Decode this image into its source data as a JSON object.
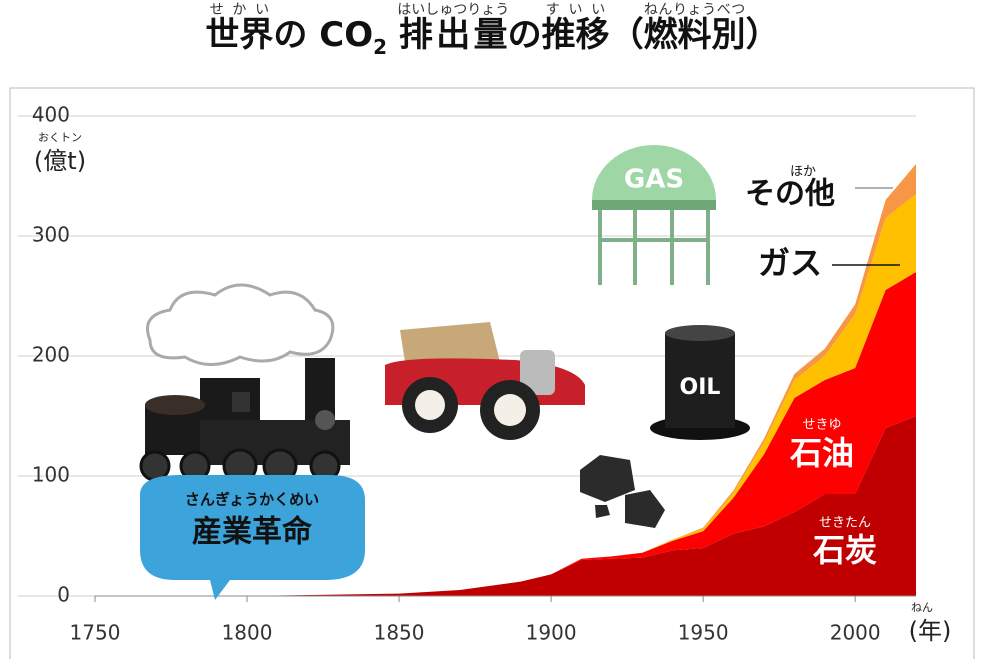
{
  "title": {
    "parts": [
      {
        "text": "世界",
        "ruby": "せかい"
      },
      {
        "text": "の "
      },
      {
        "text": "CO"
      },
      {
        "text": "2"
      },
      {
        "text": "排出量",
        "ruby": "はいしゅつりょう"
      },
      {
        "text": "の"
      },
      {
        "text": "推移",
        "ruby": "すいい"
      },
      {
        "text": "（"
      },
      {
        "text": "燃料別",
        "ruby": "ねんりょうべつ"
      },
      {
        "text": "）"
      }
    ]
  },
  "illustrations": {
    "bubble": {
      "text": "産業革命",
      "ruby": "さんぎょうかくめい"
    },
    "tank": "GAS",
    "barrel": "OIL"
  },
  "chart_data": {
    "type": "stacked_area",
    "y_label": {
      "text": "(億t)",
      "ruby": "おくトン"
    },
    "x_label": {
      "text": "(年)",
      "ruby": "ねん"
    },
    "x": [
      1750,
      1800,
      1850,
      1870,
      1890,
      1900,
      1910,
      1920,
      1930,
      1940,
      1950,
      1960,
      1970,
      1980,
      1990,
      2000,
      2010,
      2020
    ],
    "series": [
      {
        "name": "石炭",
        "ruby": "せきたん",
        "color": "#c00000",
        "values": [
          0,
          0,
          2,
          5,
          12,
          18,
          30,
          31,
          32,
          38,
          40,
          52,
          58,
          70,
          85,
          85,
          140,
          150
        ]
      },
      {
        "name": "石油",
        "ruby": "せきゆ",
        "color": "#ff0000",
        "values": [
          0,
          0,
          0,
          0,
          0,
          0,
          1,
          2,
          4,
          8,
          14,
          30,
          60,
          95,
          95,
          105,
          115,
          120
        ]
      },
      {
        "name": "ガス",
        "color": "#ffc000",
        "values": [
          0,
          0,
          0,
          0,
          0,
          0,
          0,
          0,
          0,
          1,
          2,
          4,
          10,
          15,
          20,
          45,
          60,
          65
        ]
      },
      {
        "name": "その他",
        "ruby": "ほか",
        "color": "#f79646",
        "values": [
          0,
          0,
          0,
          0,
          0,
          0,
          0,
          0,
          0,
          0,
          1,
          2,
          3,
          5,
          6,
          8,
          15,
          25
        ]
      }
    ],
    "xlim": [
      1750,
      2020
    ],
    "xticks": [
      1750,
      1800,
      1850,
      1900,
      1950,
      2000
    ],
    "ylim": [
      0,
      400
    ],
    "yticks": [
      0,
      100,
      200,
      300,
      400
    ],
    "grid": true
  }
}
